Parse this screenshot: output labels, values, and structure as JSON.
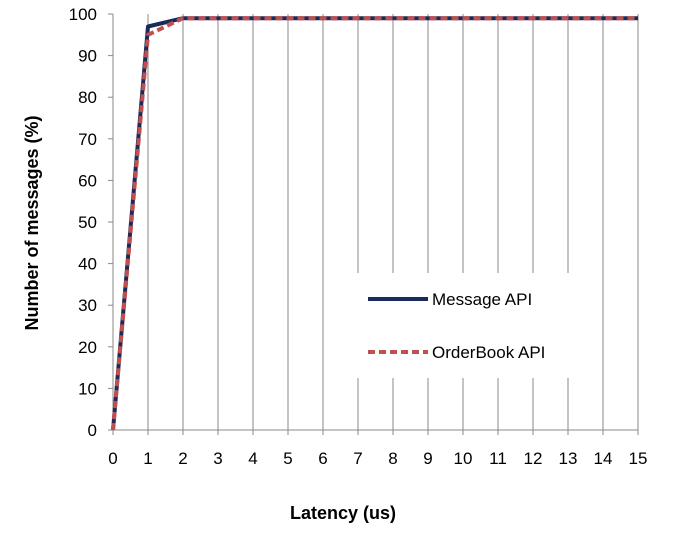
{
  "chart_data": {
    "type": "line",
    "title": "",
    "xlabel": "Latency (us)",
    "ylabel": "Number of messages (%)",
    "xlim": [
      0,
      15
    ],
    "ylim": [
      0,
      100
    ],
    "x_ticks": [
      "0",
      "1",
      "2",
      "3",
      "4",
      "5",
      "6",
      "7",
      "8",
      "9",
      "10",
      "11",
      "12",
      "13",
      "14",
      "15"
    ],
    "y_ticks": [
      "0",
      "10",
      "20",
      "30",
      "40",
      "50",
      "60",
      "70",
      "80",
      "90",
      "100"
    ],
    "grid": "vertical",
    "legend_position": "center-right",
    "series": [
      {
        "name": "Message API",
        "color": "#1a2a5a",
        "style": "solid",
        "x": [
          0,
          1,
          2,
          3,
          4,
          5,
          6,
          7,
          8,
          9,
          10,
          11,
          12,
          13,
          14,
          15
        ],
        "y": [
          0,
          97,
          99,
          99,
          99,
          99,
          99,
          99,
          99,
          99,
          99,
          99,
          99,
          99,
          99,
          99
        ]
      },
      {
        "name": "OrderBook API",
        "color": "#c0504d",
        "style": "dashed",
        "x": [
          0,
          1,
          2,
          3,
          4,
          5,
          6,
          7,
          8,
          9,
          10,
          11,
          12,
          13,
          14,
          15
        ],
        "y": [
          0,
          95,
          99,
          99,
          99,
          99,
          99,
          99,
          99,
          99,
          99,
          99,
          99,
          99,
          99,
          99
        ]
      }
    ]
  }
}
